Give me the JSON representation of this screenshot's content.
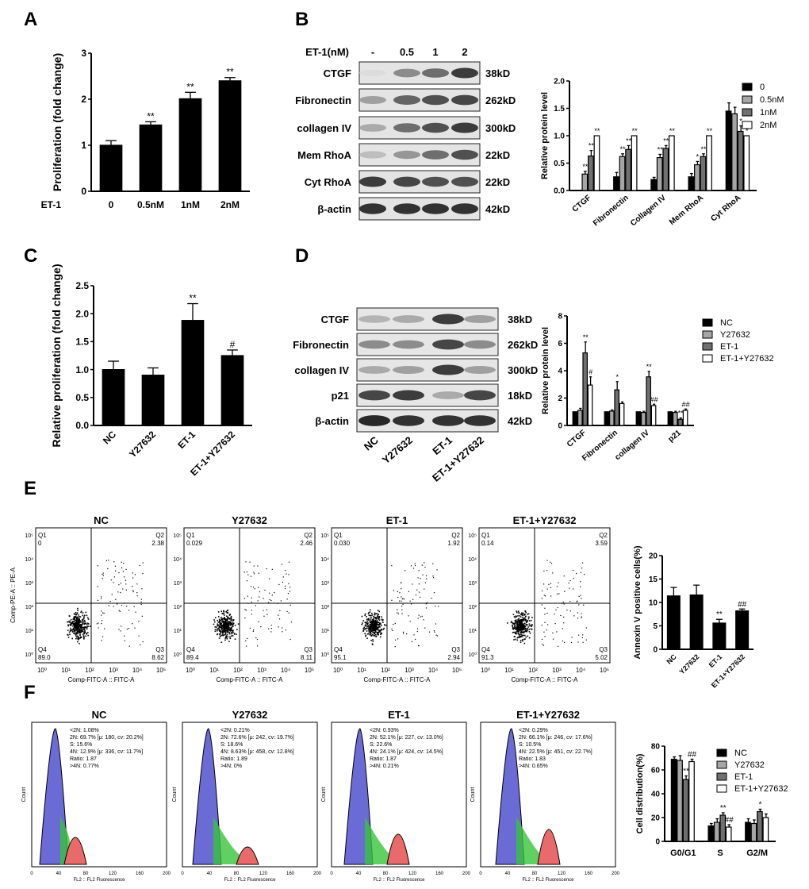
{
  "panel_letters": [
    "A",
    "B",
    "C",
    "D",
    "E",
    "F"
  ],
  "colors": {
    "black": "#000000",
    "light_gray": "#a6a6a6",
    "dark_gray": "#707070",
    "white": "#ffffff",
    "blue": "#6b6bd6",
    "green": "#37c43a",
    "red": "#e86a6a"
  },
  "chart_data": [
    {
      "id": "A",
      "type": "bar",
      "title": "",
      "xlabel": "",
      "ylabel": "Proliferation (fold change)",
      "row_label": "ET-1",
      "categories": [
        "0",
        "0.5nM",
        "1nM",
        "2nM"
      ],
      "values": [
        1.0,
        1.44,
        2.01,
        2.4
      ],
      "errors": [
        0.1,
        0.07,
        0.14,
        0.07
      ],
      "annotations": [
        "",
        "**",
        "**",
        "**"
      ],
      "ylim": [
        0,
        3
      ],
      "yticks": [
        "0",
        "1",
        "2",
        "3"
      ]
    },
    {
      "id": "B",
      "type": "bar",
      "ylabel": "Relative protein level",
      "categories": [
        "CTGF",
        "Fibronectin",
        "Collagen IV",
        "Mem RhoA",
        "Cyt RhoA"
      ],
      "series": [
        {
          "name": "0",
          "values": [
            0,
            0.25,
            0.2,
            0.25,
            1.45
          ],
          "errors": [
            0,
            0.08,
            0.04,
            0.06,
            0.15
          ],
          "annotations": [
            "",
            "",
            "",
            "",
            ""
          ]
        },
        {
          "name": "0.5nM",
          "values": [
            0.3,
            0.62,
            0.6,
            0.47,
            1.4
          ],
          "errors": [
            0.05,
            0.05,
            0.06,
            0.06,
            0.12
          ],
          "annotations": [
            "**",
            "**",
            "**",
            "*",
            ""
          ]
        },
        {
          "name": "1nM",
          "values": [
            0.63,
            0.75,
            0.77,
            0.62,
            1.08
          ],
          "errors": [
            0.1,
            0.07,
            0.05,
            0.05,
            0.1
          ],
          "annotations": [
            "**",
            "**",
            "**",
            "**",
            "*"
          ]
        },
        {
          "name": "2nM",
          "values": [
            1.0,
            1.0,
            1.0,
            1.0,
            1.0
          ],
          "errors": [
            0,
            0,
            0,
            0,
            0
          ],
          "annotations": [
            "**",
            "**",
            "**",
            "**",
            "*"
          ]
        }
      ],
      "ylim": [
        0,
        2
      ],
      "yticks": [
        "0.0",
        "0.5",
        "1.0",
        "1.5",
        "2.0"
      ]
    },
    {
      "id": "C",
      "type": "bar",
      "ylabel": "Relative proliferation (fold change)",
      "categories": [
        "NC",
        "Y27632",
        "ET-1",
        "ET-1+Y27632"
      ],
      "values": [
        1.0,
        0.9,
        1.88,
        1.25
      ],
      "errors": [
        0.15,
        0.13,
        0.3,
        0.1
      ],
      "annotations": [
        "",
        "",
        "**",
        "#"
      ],
      "ylim": [
        0,
        2.5
      ],
      "yticks": [
        "0.0",
        "0.5",
        "1.0",
        "1.5",
        "2.0",
        "2.5"
      ]
    },
    {
      "id": "D",
      "type": "bar",
      "ylabel": "Relative protein level",
      "categories": [
        "CTGF",
        "Fibronectin",
        "collagen IV",
        "p21"
      ],
      "series": [
        {
          "name": "NC",
          "values": [
            1.0,
            1.0,
            1.0,
            1.0
          ],
          "errors": [
            0,
            0,
            0,
            0
          ],
          "annotations": [
            "",
            "",
            "",
            ""
          ]
        },
        {
          "name": "Y27632",
          "values": [
            1.1,
            1.05,
            0.95,
            0.95
          ],
          "errors": [
            0.15,
            0.08,
            0.08,
            0.08
          ],
          "annotations": [
            "",
            "",
            "",
            ""
          ]
        },
        {
          "name": "ET-1",
          "values": [
            5.3,
            2.6,
            3.55,
            0.45
          ],
          "errors": [
            0.8,
            0.6,
            0.4,
            0.1
          ],
          "annotations": [
            "**",
            "*",
            "**",
            "**"
          ]
        },
        {
          "name": "ET-1+Y27632",
          "values": [
            2.95,
            1.6,
            1.45,
            1.1
          ],
          "errors": [
            0.6,
            0.12,
            0.1,
            0.1
          ],
          "annotations": [
            "#",
            "",
            "##",
            "##"
          ]
        }
      ],
      "ylim": [
        0,
        8
      ],
      "yticks": [
        "0",
        "2",
        "4",
        "6",
        "8"
      ]
    },
    {
      "id": "E",
      "type": "bar",
      "ylabel": "Annexin V positive cells(%)",
      "categories": [
        "NC",
        "Y27632",
        "ET-1",
        "ET-1+Y27632"
      ],
      "values": [
        11.4,
        11.6,
        5.6,
        8.2
      ],
      "errors": [
        1.8,
        2.1,
        0.8,
        0.4
      ],
      "annotations": [
        "",
        "",
        "**",
        "##"
      ],
      "ylim": [
        0,
        20
      ],
      "yticks": [
        "0",
        "5",
        "10",
        "15",
        "20"
      ]
    },
    {
      "id": "F",
      "type": "bar",
      "ylabel": "Cell distribution(%)",
      "categories": [
        "G0/G1",
        "S",
        "G2/M"
      ],
      "series": [
        {
          "name": "NC",
          "values": [
            69,
            13,
            16
          ],
          "errors": [
            2,
            2,
            3
          ],
          "annotations": [
            "",
            "",
            ""
          ]
        },
        {
          "name": "Y27632",
          "values": [
            68,
            16,
            15
          ],
          "errors": [
            4,
            3,
            3
          ],
          "annotations": [
            "",
            "",
            ""
          ]
        },
        {
          "name": "ET-1",
          "values": [
            52,
            22,
            25
          ],
          "errors": [
            3,
            2,
            2
          ],
          "annotations": [
            "**",
            "**",
            "*"
          ]
        },
        {
          "name": "ET-1+Y27632",
          "values": [
            67,
            12,
            20
          ],
          "errors": [
            2,
            2,
            3
          ],
          "annotations": [
            "##",
            "##",
            ""
          ]
        }
      ],
      "ylim": [
        0,
        80
      ],
      "yticks": [
        "0",
        "20",
        "40",
        "60",
        "80"
      ]
    }
  ],
  "blot_B": {
    "header_label": "ET-1(nM)",
    "lanes": [
      "-",
      "0.5",
      "1",
      "2"
    ],
    "bands": [
      {
        "name": "CTGF",
        "size": "38kD"
      },
      {
        "name": "Fibronectin",
        "size": "262kD"
      },
      {
        "name": "collagen IV",
        "size": "300kD"
      },
      {
        "name": "Mem RhoA",
        "size": "22kD"
      },
      {
        "name": "Cyt RhoA",
        "size": "22kD"
      },
      {
        "name": "β-actin",
        "size": "42kD"
      }
    ]
  },
  "blot_D": {
    "lanes": [
      "NC",
      "Y27632",
      "ET-1",
      "ET-1+Y27632"
    ],
    "bands": [
      {
        "name": "CTGF",
        "size": "38kD"
      },
      {
        "name": "Fibronectin",
        "size": "262kD"
      },
      {
        "name": "collagen IV",
        "size": "300kD"
      },
      {
        "name": "p21",
        "size": "18kD"
      },
      {
        "name": "β-actin",
        "size": "42kD"
      }
    ]
  },
  "flow_E": {
    "x_axis": "Comp-FITC-A :: FITC-A",
    "y_axis": "Comp-PE-A :: PE-A",
    "ticks": [
      "10⁰",
      "10¹",
      "10²",
      "10³",
      "10⁴",
      "10⁵"
    ],
    "plots": [
      {
        "title": "NC",
        "q1": "0",
        "q2": "2.38",
        "q3": "8.62",
        "q4": "89.0"
      },
      {
        "title": "Y27632",
        "q1": "0.029",
        "q2": "2.46",
        "q3": "8.11",
        "q4": "89.4"
      },
      {
        "title": "ET-1",
        "q1": "0.030",
        "q2": "1.92",
        "q3": "2.94",
        "q4": "95.1"
      },
      {
        "title": "ET-1+Y27632",
        "q1": "0.14",
        "q2": "3.59",
        "q3": "5.02",
        "q4": "91.3"
      }
    ]
  },
  "cycle_F": {
    "x_axis": "FL2 :: FL2 Fluorescence",
    "y_axis": "Count",
    "plots": [
      {
        "title": "NC",
        "stats": [
          "<2N: 1.08%",
          "2N: 69.7% [μ: 180, cv: 20.2%]",
          "S: 15.6%",
          "4N: 12.9% [μ: 336, cv: 11.7%]",
          "Ratio: 1.87",
          ">4N: 0.77%"
        ]
      },
      {
        "title": "Y27632",
        "stats": [
          "<2N: 0.21%",
          "2N: 72.6% [μ: 242, cv: 19.7%]",
          "S: 18.6%",
          "4N: 8.63% [μ: 458, cv: 12.8%]",
          "Ratio: 1.89",
          ">4N: 0%"
        ]
      },
      {
        "title": "ET-1",
        "stats": [
          "<2N: 0.93%",
          "2N: 52.1% [μ: 227, cv: 13.0%]",
          "S: 22.6%",
          "4N: 24.1% [μ: 424, cv: 14.5%]",
          "Ratio: 1.87",
          ">4N: 0.21%"
        ]
      },
      {
        "title": "ET-1+Y27632",
        "stats": [
          "<2N: 0.29%",
          "2N: 66.1% [μ: 246, cv: 17.6%]",
          "S: 10.5%",
          "4N: 22.5% [μ: 451, cv: 22.7%]",
          "Ratio: 1.83",
          ">4N: 0.65%"
        ]
      }
    ]
  }
}
